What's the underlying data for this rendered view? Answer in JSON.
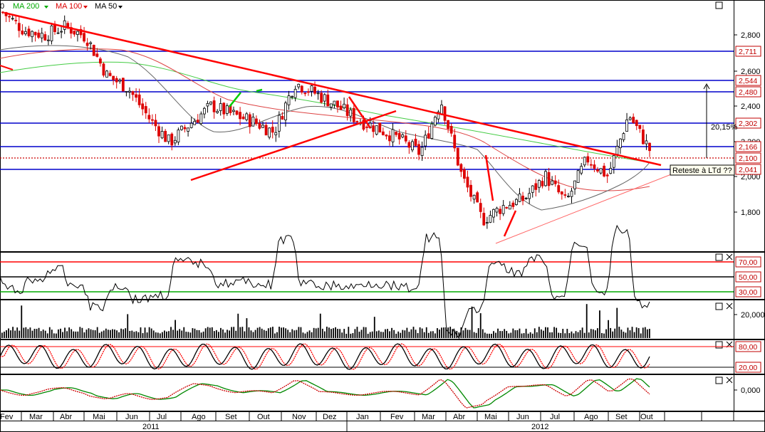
{
  "legend": {
    "items": [
      {
        "label": "MA 200",
        "color": "#00cc00"
      },
      {
        "label": "MA 100",
        "color": "#dd0000"
      },
      {
        "label": "MA 50",
        "color": "#000000"
      }
    ],
    "truncated_label": "0"
  },
  "colors": {
    "candle_up": "#000000",
    "candle_down": "#dd0000",
    "trendline": "#ff0000",
    "support_line": "#0000cc",
    "ma200": "#33cc33",
    "ma100": "#dd4444",
    "ma50": "#666666",
    "rsi_upper": "#ff0000",
    "rsi_lower": "#00aa00",
    "stoch_k": "#000000",
    "stoch_d": "#ff0000",
    "macd_main": "#cc0000",
    "macd_signal": "#008800"
  },
  "main_panel": {
    "y_ticks": [
      "2,800",
      "2,600",
      "2,400",
      "2,200",
      "2,000",
      "1,800"
    ],
    "level_badges": [
      "2,711",
      "2,544",
      "2,480",
      "2,302",
      "2,166",
      "2,100",
      "2,041"
    ],
    "annotation_pct": "20,15%",
    "annotation_retest": "Reteste à LTd ??"
  },
  "rsi_panel": {
    "ticks": [
      "70,00",
      "50,00",
      "30,00"
    ]
  },
  "volume_panel": {
    "ticks": [
      "20,000"
    ]
  },
  "stoch_panel": {
    "ticks": [
      "80,00",
      "20,00"
    ]
  },
  "macd_panel": {
    "ticks": [
      "0,000"
    ]
  },
  "x_axis": {
    "months": [
      "Fev",
      "Mar",
      "Abr",
      "Mai",
      "Jun",
      "Jul",
      "Ago",
      "Set",
      "Out",
      "Nov",
      "Dez",
      "Jan",
      "Fev",
      "Mar",
      "Abr",
      "Mai",
      "Jun",
      "Jul",
      "Ago",
      "Set",
      "Out"
    ],
    "years": [
      "2011",
      "2012"
    ]
  },
  "chart_data": {
    "type": "line",
    "price_scale": [
      1.6,
      2.95
    ],
    "price_path": [
      [
        0,
        2.88
      ],
      [
        1,
        2.78
      ],
      [
        2,
        2.75
      ],
      [
        3,
        2.8
      ],
      [
        4,
        2.74
      ],
      [
        5,
        2.52
      ],
      [
        6,
        2.45
      ],
      [
        7,
        2.28
      ],
      [
        8,
        2.14
      ],
      [
        9,
        2.25
      ],
      [
        10,
        2.35
      ],
      [
        11,
        2.3
      ],
      [
        12,
        2.26
      ],
      [
        13,
        2.2
      ],
      [
        14,
        2.48
      ],
      [
        15,
        2.42
      ],
      [
        16,
        2.35
      ],
      [
        17,
        2.27
      ],
      [
        18,
        2.22
      ],
      [
        19,
        2.16
      ],
      [
        20,
        2.08
      ],
      [
        21,
        2.38
      ],
      [
        22,
        1.95
      ],
      [
        23,
        1.7
      ],
      [
        24,
        1.78
      ],
      [
        25,
        1.82
      ],
      [
        26,
        1.95
      ],
      [
        27,
        1.8
      ],
      [
        28,
        2.05
      ],
      [
        29,
        1.95
      ],
      [
        30,
        2.3
      ],
      [
        31,
        2.1
      ]
    ],
    "levels": [
      2.711,
      2.544,
      2.48,
      2.302,
      2.166,
      2.1,
      2.041
    ]
  }
}
